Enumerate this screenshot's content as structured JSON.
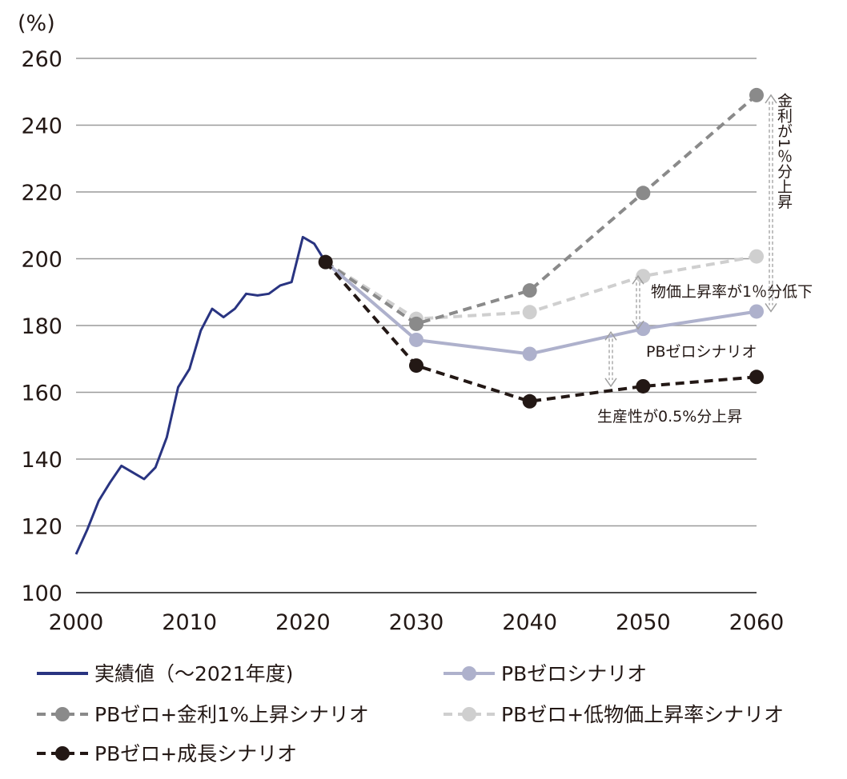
{
  "chart_data": {
    "type": "line",
    "unit_label": "(%)",
    "x_ticks": [
      2000,
      2010,
      2020,
      2030,
      2040,
      2050,
      2060
    ],
    "y_ticks": [
      100,
      120,
      140,
      160,
      180,
      200,
      220,
      240,
      260
    ],
    "xlim": [
      2000,
      2060
    ],
    "ylim": [
      100,
      260
    ],
    "grid": true,
    "series": [
      {
        "name": "実績値（〜2021年度)",
        "color": "#293481",
        "style": "solid",
        "markers": false,
        "x": [
          2000,
          2001,
          2002,
          2003,
          2004,
          2005,
          2006,
          2007,
          2008,
          2009,
          2010,
          2011,
          2012,
          2013,
          2014,
          2015,
          2016,
          2017,
          2018,
          2019,
          2020,
          2021,
          2022
        ],
        "y": [
          111.5,
          119,
          127.5,
          133,
          138,
          136,
          134,
          137.5,
          146.5,
          161.5,
          167,
          178.5,
          185,
          182.5,
          185,
          189.5,
          189,
          189.5,
          192,
          193,
          206.5,
          204.5,
          199
        ]
      },
      {
        "name": "PBゼロシナリオ",
        "color": "#aeb1cc",
        "style": "solid",
        "markers": true,
        "x": [
          2022,
          2030,
          2040,
          2050,
          2060
        ],
        "y": [
          199,
          175.7,
          171.5,
          179,
          184.2
        ]
      },
      {
        "name": "PBゼロ+金利1%上昇シナリオ",
        "color": "#8a8a8a",
        "style": "dashed",
        "markers": true,
        "x": [
          2022,
          2030,
          2040,
          2050,
          2060
        ],
        "y": [
          199,
          180.5,
          190.5,
          219.7,
          249
        ]
      },
      {
        "name": "PBゼロ+低物価上昇率シナリオ",
        "color": "#cfcfcf",
        "style": "dashed",
        "markers": true,
        "x": [
          2022,
          2030,
          2040,
          2050,
          2060
        ],
        "y": [
          199,
          182,
          184,
          194.8,
          200.7
        ]
      },
      {
        "name": "PBゼロ+成長シナリオ",
        "color": "#231815",
        "style": "dashed",
        "markers": true,
        "x": [
          2022,
          2030,
          2040,
          2050,
          2060
        ],
        "y": [
          199,
          168,
          157.3,
          161.8,
          164.6
        ]
      }
    ],
    "annotations": {
      "rate_label": "金利が1％分上昇",
      "inflation_label": "物価上昇率が1％分低下",
      "pb_label": "PBゼロシナリオ",
      "growth_label": "生産性が0.5%分上昇"
    },
    "legend": [
      {
        "label": "実績値（〜2021年度)",
        "series": 0
      },
      {
        "label": "PBゼロシナリオ",
        "series": 1
      },
      {
        "label": "PBゼロ+金利1%上昇シナリオ",
        "series": 2
      },
      {
        "label": "PBゼロ+低物価上昇率シナリオ",
        "series": 3
      },
      {
        "label": "PBゼロ+成長シナリオ",
        "series": 4
      }
    ]
  }
}
